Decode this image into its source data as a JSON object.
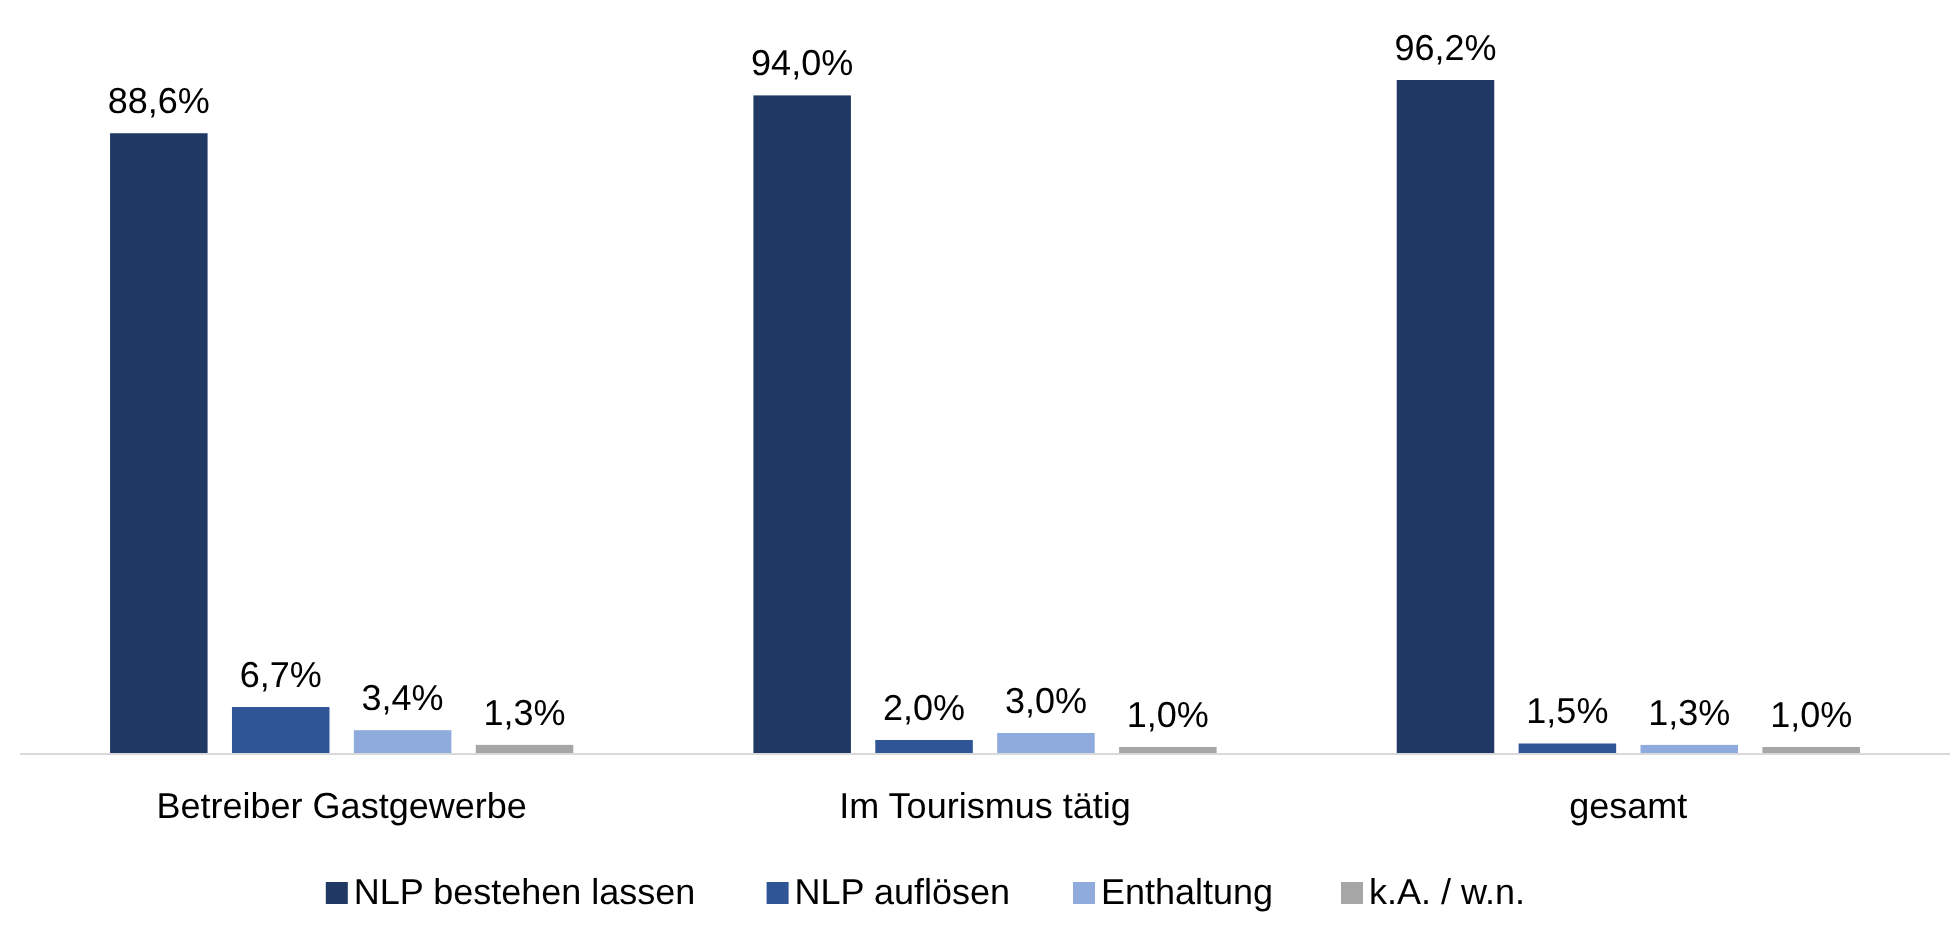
{
  "chart_data": {
    "type": "bar",
    "categories": [
      "Betreiber Gastgewerbe",
      "Im Tourismus tätig",
      "gesamt"
    ],
    "series": [
      {
        "name": "NLP bestehen lassen",
        "color": "#203864",
        "values": [
          88.6,
          94.0,
          96.2
        ],
        "value_labels": [
          "88,6%",
          "94,0%",
          "96,2%"
        ]
      },
      {
        "name": "NLP auflösen",
        "color": "#2f5597",
        "values": [
          6.7,
          2.0,
          1.5
        ],
        "value_labels": [
          "6,7%",
          "2,0%",
          "1,5%"
        ]
      },
      {
        "name": "Enthaltung",
        "color": "#8faadc",
        "values": [
          3.4,
          3.0,
          1.3
        ],
        "value_labels": [
          "3,4%",
          "3,0%",
          "1,3%"
        ]
      },
      {
        "name": "k.A. / w.n.",
        "color": "#a6a6a6",
        "values": [
          1.3,
          1.0,
          1.0
        ],
        "value_labels": [
          "1,3%",
          "1,0%",
          "1,0%"
        ]
      }
    ],
    "legend": "bottom",
    "grid": false
  }
}
